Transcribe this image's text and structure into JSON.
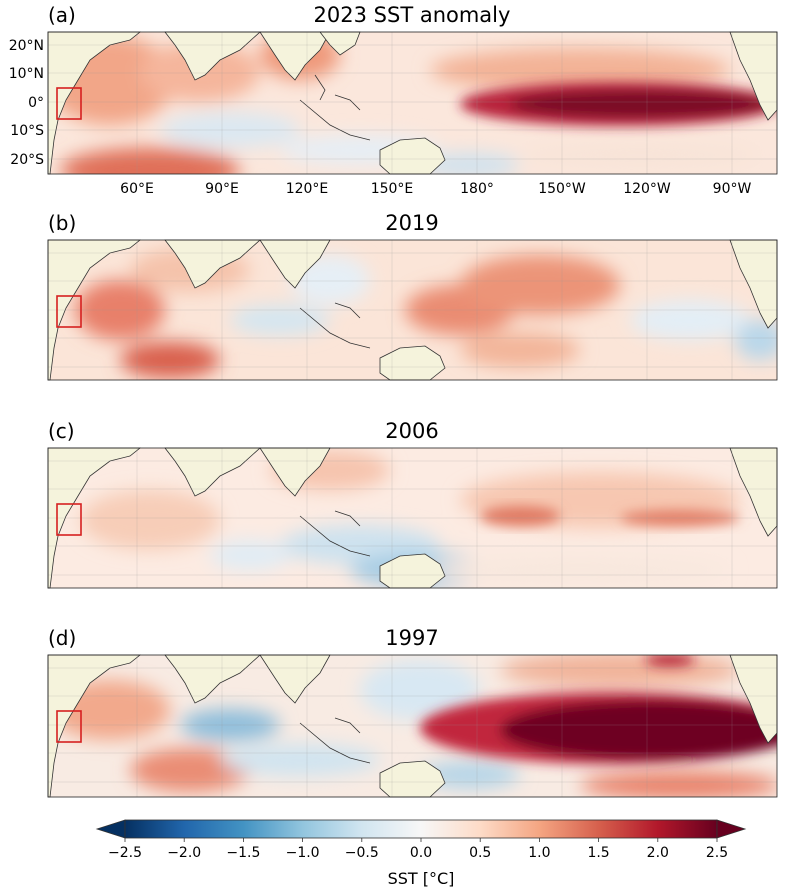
{
  "panels": [
    {
      "letter": "(a)",
      "title": "2023 SST anomaly"
    },
    {
      "letter": "(b)",
      "title": "2019"
    },
    {
      "letter": "(c)",
      "title": "2006"
    },
    {
      "letter": "(d)",
      "title": "1997"
    }
  ],
  "axes": {
    "lon_ticks": [
      "60°E",
      "90°E",
      "120°E",
      "150°E",
      "180°",
      "150°W",
      "120°W",
      "90°W"
    ],
    "lat_ticks": [
      "20°N",
      "10°N",
      "0°",
      "10°S",
      "20°S"
    ]
  },
  "colorbar": {
    "label": "SST [°C]",
    "ticks": [
      "−2.5",
      "−2.0",
      "−1.5",
      "−1.0",
      "−0.5",
      "0.0",
      "0.5",
      "1.0",
      "1.5",
      "2.0",
      "2.5"
    ],
    "range": [
      -2.5,
      2.5
    ],
    "levels": 25,
    "colormap": "RdBu_r"
  },
  "colors": {
    "land": "#f5f3dc",
    "box": "#d62020",
    "warm_max": "#67001f",
    "cold_max": "#053061"
  }
}
